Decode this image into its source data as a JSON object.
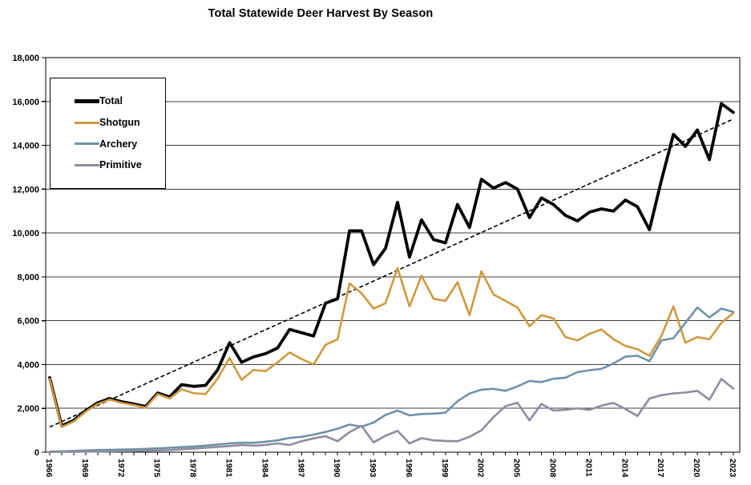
{
  "title": "Total Statewide Deer Harvest By Season",
  "chart_data": {
    "type": "line",
    "title": "Total Statewide Deer Harvest By Season",
    "xlabel": "",
    "ylabel": "",
    "ylim": [
      0,
      18000
    ],
    "y_tick_interval": 2000,
    "grid": "horizontal-major",
    "legend_position": "upper-left-inside",
    "x_label_rotation": 90,
    "x": [
      1966,
      1967,
      1968,
      1969,
      1970,
      1971,
      1972,
      1973,
      1974,
      1975,
      1976,
      1977,
      1978,
      1979,
      1980,
      1981,
      1982,
      1983,
      1984,
      1985,
      1986,
      1987,
      1988,
      1989,
      1990,
      1991,
      1992,
      1993,
      1994,
      1995,
      1996,
      1997,
      1998,
      1999,
      2000,
      2001,
      2002,
      2003,
      2004,
      2005,
      2006,
      2007,
      2008,
      2009,
      2010,
      2011,
      2012,
      2013,
      2014,
      2015,
      2016,
      2017,
      2018,
      2019,
      2020,
      2021,
      2022,
      2023
    ],
    "x_tick_labels": [
      "1966",
      "1969",
      "1972",
      "1975",
      "1978",
      "1981",
      "1984",
      "1987",
      "1990",
      "1993",
      "1996",
      "1999",
      "2002",
      "2005",
      "2008",
      "2011",
      "2014",
      "2017",
      "2020",
      "2023"
    ],
    "y_tick_labels": [
      "0",
      "2,000",
      "4,000",
      "6,000",
      "8,000",
      "10,000",
      "12,000",
      "14,000",
      "16,000",
      "18,000"
    ],
    "series": [
      {
        "name": "Total",
        "color": "#000000",
        "stroke_width": 3.8,
        "values": [
          3400,
          1200,
          1450,
          1900,
          2250,
          2450,
          2300,
          2200,
          2080,
          2700,
          2520,
          3080,
          3000,
          3050,
          3750,
          5000,
          4100,
          4350,
          4500,
          4750,
          5600,
          5450,
          5300,
          6800,
          7000,
          10100,
          10100,
          8550,
          9300,
          11400,
          8900,
          10600,
          9700,
          9550,
          11300,
          10250,
          12450,
          12050,
          12300,
          12000,
          10700,
          11600,
          11300,
          10800,
          10550,
          10950,
          11100,
          11000,
          11500,
          11200,
          10150,
          12400,
          14500,
          13950,
          14700,
          13350,
          15900,
          15500
        ]
      },
      {
        "name": "Shotgun",
        "color": "#D0993F",
        "stroke_width": 2.6,
        "values": [
          3350,
          1150,
          1400,
          1850,
          2200,
          2400,
          2250,
          2150,
          2030,
          2650,
          2450,
          2870,
          2690,
          2650,
          3350,
          4300,
          3300,
          3750,
          3700,
          4100,
          4550,
          4250,
          4000,
          4900,
          5150,
          7700,
          7250,
          6550,
          6800,
          8400,
          6650,
          8050,
          7000,
          6900,
          7750,
          6250,
          8250,
          7200,
          6900,
          6600,
          5750,
          6250,
          6100,
          5250,
          5100,
          5400,
          5600,
          5150,
          4850,
          4700,
          4400,
          5300,
          6650,
          5000,
          5250,
          5150,
          5900,
          6350
        ]
      },
      {
        "name": "Archery",
        "color": "#6E92A8",
        "stroke_width": 2.6,
        "values": [
          30,
          40,
          60,
          80,
          100,
          110,
          120,
          130,
          150,
          175,
          200,
          230,
          260,
          300,
          350,
          400,
          430,
          430,
          480,
          540,
          650,
          700,
          800,
          925,
          1075,
          1260,
          1165,
          1350,
          1700,
          1900,
          1680,
          1740,
          1760,
          1800,
          2325,
          2675,
          2850,
          2890,
          2800,
          3000,
          3250,
          3200,
          3350,
          3400,
          3650,
          3740,
          3800,
          4050,
          4360,
          4400,
          4150,
          5100,
          5200,
          5900,
          6600,
          6150,
          6550,
          6400
        ]
      },
      {
        "name": "Primitive",
        "color": "#8E8CA0",
        "stroke_width": 2.6,
        "values": [
          10,
          15,
          20,
          25,
          30,
          40,
          50,
          60,
          70,
          80,
          100,
          130,
          160,
          200,
          240,
          280,
          330,
          300,
          330,
          400,
          330,
          500,
          630,
          730,
          500,
          915,
          1200,
          450,
          750,
          975,
          400,
          640,
          540,
          515,
          500,
          700,
          1000,
          1600,
          2100,
          2260,
          1450,
          2200,
          1900,
          1930,
          2000,
          1930,
          2125,
          2250,
          1970,
          1650,
          2450,
          2600,
          2680,
          2720,
          2800,
          2390,
          3340,
          2900
        ]
      }
    ],
    "trendline": {
      "style": "dashed",
      "color": "#000000",
      "from_year": 1966,
      "from_value": 1150,
      "to_year": 2023,
      "to_value": 15200
    }
  }
}
